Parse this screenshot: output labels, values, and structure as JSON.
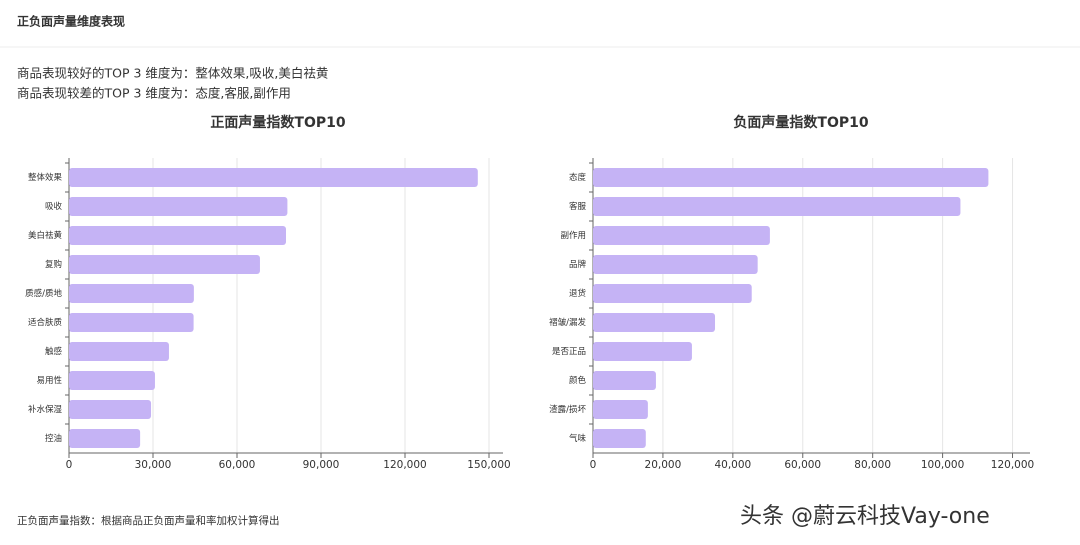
{
  "header": {
    "title": "正负面声量维度表现"
  },
  "summary": [
    "商品表现较好的TOP 3 维度为：整体效果,吸收,美白祛黄",
    "商品表现较差的TOP 3 维度为：态度,客服,副作用"
  ],
  "footnote": "正负面声量指数：根据商品正负面声量和率加权计算得出",
  "watermark": "头条 @蔚云科技Vay-one",
  "chart_data": [
    {
      "type": "hbar",
      "title": "正面声量指数TOP10",
      "categories": [
        "整体效果",
        "吸收",
        "美白祛黄",
        "复购",
        "质感/质地",
        "适合肤质",
        "触感",
        "易用性",
        "补水保湿",
        "控油"
      ],
      "values": [
        146000,
        78000,
        77500,
        68200,
        44600,
        44500,
        35700,
        30700,
        29300,
        25400
      ],
      "color": "#c5b3f5",
      "xlim": [
        0,
        155000
      ],
      "xticks": [
        0,
        {
          "value": 30000,
          "label": "30,000"
        },
        {
          "value": 60000,
          "label": "60,000"
        },
        {
          "value": 90000,
          "label": "90,000"
        },
        {
          "value": 120000,
          "label": "120,000"
        },
        {
          "value": 150000,
          "label": "150,000"
        }
      ],
      "grid": true
    },
    {
      "type": "hbar",
      "title": "负面声量指数TOP10",
      "categories": [
        "态度",
        "客服",
        "副作用",
        "品牌",
        "退货",
        "褶皱/漏发",
        "是否正品",
        "颜色",
        "渣露/损坏",
        "气味"
      ],
      "values": [
        113100,
        105100,
        50600,
        47100,
        45400,
        34900,
        28300,
        18000,
        15700,
        15100
      ],
      "color": "#c5b3f5",
      "xlim": [
        0,
        125000
      ],
      "xticks": [
        0,
        {
          "value": 20000,
          "label": "20,000"
        },
        {
          "value": 40000,
          "label": "40,000"
        },
        {
          "value": 60000,
          "label": "60,000"
        },
        {
          "value": 80000,
          "label": "80,000"
        },
        {
          "value": 100000,
          "label": "100,000"
        },
        {
          "value": 120000,
          "label": "120,000"
        }
      ],
      "grid": true
    }
  ]
}
